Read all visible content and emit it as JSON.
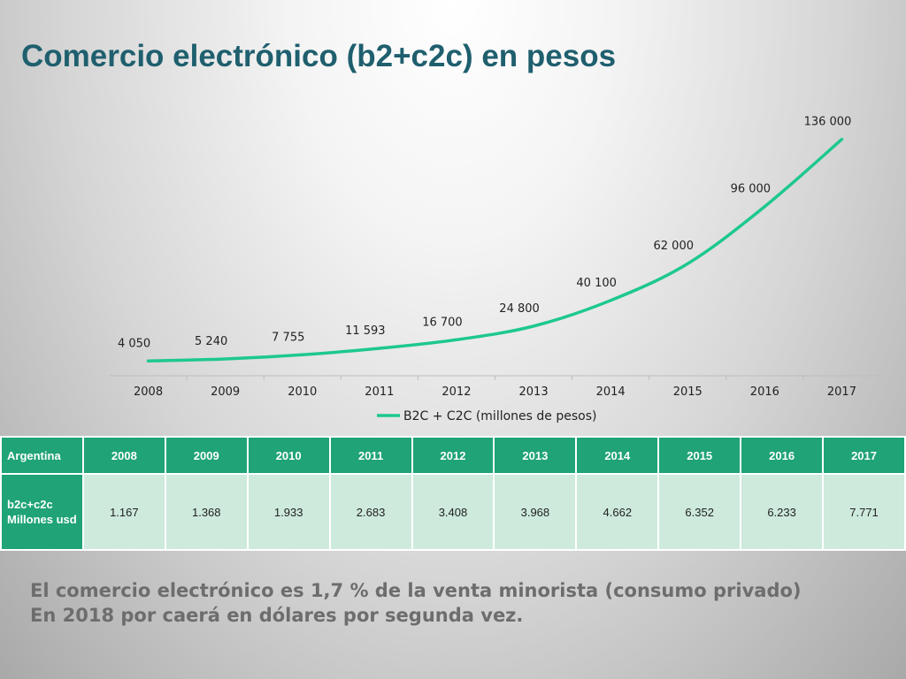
{
  "title": "Comercio electrónico (b2+c2c) en pesos",
  "chart_data": {
    "type": "line",
    "x": [
      "2008",
      "2009",
      "2010",
      "2011",
      "2012",
      "2013",
      "2014",
      "2015",
      "2016",
      "2017"
    ],
    "series": [
      {
        "name": "B2C + C2C (millones de pesos)",
        "values": [
          4050,
          5240,
          7755,
          11593,
          16700,
          24800,
          40100,
          62000,
          96000,
          136000
        ],
        "labels": [
          "4 050",
          "5 240",
          "7 755",
          "11 593",
          "16 700",
          "24 800",
          "40 100",
          "62 000",
          "96 000",
          "136 000"
        ],
        "color": "#1dc88f"
      }
    ],
    "legend": "bottom",
    "grid": false
  },
  "table": {
    "header_label": "Argentina",
    "years": [
      "2008",
      "2009",
      "2010",
      "2011",
      "2012",
      "2013",
      "2014",
      "2015",
      "2016",
      "2017"
    ],
    "row_label_line1": "b2c+c2c",
    "row_label_line2": "Millones usd",
    "values": [
      "1.167",
      "1.368",
      "1.933",
      "2.683",
      "3.408",
      "3.968",
      "4.662",
      "6.352",
      "6.233",
      "7.771"
    ]
  },
  "footer": {
    "line1": "El comercio electrónico es 1,7 % de la venta minorista (consumo privado)",
    "line2": "En 2018 por caerá en dólares por segunda vez."
  },
  "colors": {
    "title": "#1f5f6e",
    "table_header": "#1fa377",
    "table_cell": "#cdeadd",
    "line": "#1dc88f"
  }
}
